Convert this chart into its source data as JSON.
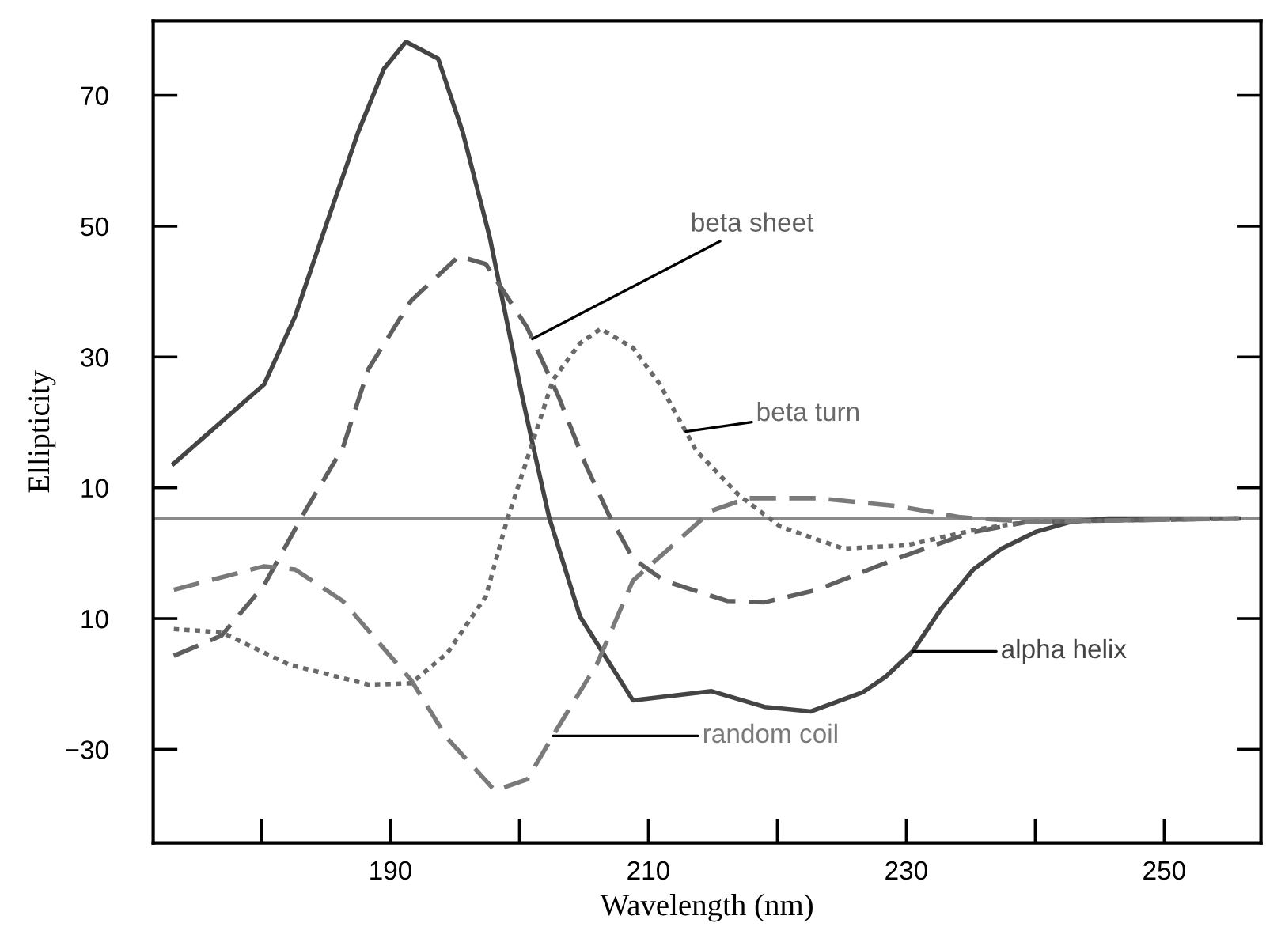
{
  "chart_data": {
    "type": "line",
    "xlabel": "Wavelength (nm)",
    "ylabel": "Ellipticity",
    "xlim": [
      171.6,
      257.5
    ],
    "ylim": [
      -44.3,
      81.4
    ],
    "xticks": [
      {
        "value": 180,
        "label": null
      },
      190,
      {
        "value": 200,
        "label": null
      },
      210,
      {
        "value": 220,
        "label": null
      },
      230,
      {
        "value": 240,
        "label": null
      },
      250
    ],
    "yticks": [
      70,
      50,
      30,
      10,
      {
        "value": -10,
        "label": "10"
      },
      {
        "value": -30,
        "label": "−30"
      }
    ],
    "grid": false,
    "legend": false,
    "marker": "none",
    "ref_lines": [
      {
        "axis": "y",
        "value": 5.3,
        "color": "#8a8a8a"
      }
    ],
    "series": [
      {
        "name": "alpha helix",
        "color": "#444444",
        "line_style": "solid",
        "x": [
          173.2,
          180.2,
          182.6,
          185.1,
          187.5,
          189.5,
          191.2,
          193.7,
          195.6,
          197.7,
          200.2,
          201.0,
          202.3,
          204.7,
          208.8,
          214.9,
          219.0,
          222.6,
          226.6,
          228.4,
          230.5,
          232.7,
          235.2,
          237.4,
          240.1,
          242.8,
          245.6,
          255.8
        ],
        "values": [
          13.7,
          25.8,
          36.2,
          50.7,
          64.4,
          74.1,
          78.2,
          75.6,
          64.4,
          48.3,
          24.1,
          16.9,
          5.5,
          -9.7,
          -22.5,
          -21.1,
          -23.5,
          -24.2,
          -21.3,
          -18.9,
          -15.0,
          -8.5,
          -2.5,
          0.7,
          3.3,
          4.8,
          5.3,
          5.3
        ]
      },
      {
        "name": "beta sheet",
        "color": "#5f5f5f",
        "line_style": "dashed",
        "x": [
          173.2,
          176.9,
          180.2,
          183.4,
          186.3,
          188.3,
          191.6,
          195.3,
          197.4,
          200.6,
          203.0,
          205.1,
          206.9,
          208.8,
          211.2,
          216.1,
          219.0,
          223.1,
          229.3,
          234.9,
          239.4,
          255.8
        ],
        "values": [
          -15.7,
          -12.6,
          -4.9,
          6.5,
          16.1,
          28.2,
          38.6,
          45.4,
          44.2,
          34.5,
          24.1,
          13.7,
          6.0,
          -0.8,
          -4.2,
          -7.3,
          -7.5,
          -5.6,
          -0.8,
          3.1,
          4.8,
          5.3
        ]
      },
      {
        "name": "beta turn",
        "color": "#6a6a6a",
        "line_style": "dotted",
        "x": [
          173.2,
          176.9,
          182.1,
          188.3,
          191.6,
          194.4,
          197.4,
          199.0,
          200.6,
          202.6,
          204.7,
          206.3,
          208.8,
          210.9,
          213.7,
          217.0,
          220.2,
          225.1,
          230.0,
          235.4,
          239.4,
          255.8
        ],
        "values": [
          -11.6,
          -12.1,
          -17.0,
          -20.1,
          -19.9,
          -15.3,
          -6.6,
          4.8,
          14.4,
          26.5,
          32.1,
          34.3,
          31.4,
          25.8,
          15.7,
          8.9,
          4.1,
          0.7,
          1.2,
          3.6,
          4.8,
          5.3
        ]
      },
      {
        "name": "random coil",
        "color": "#7a7a7a",
        "line_style": "dashed",
        "x": [
          173.2,
          180.2,
          182.6,
          186.3,
          191.6,
          194.4,
          198.1,
          200.6,
          203.0,
          206.0,
          208.8,
          211.6,
          214.9,
          217.7,
          223.1,
          229.3,
          234.2,
          239.4,
          255.8
        ],
        "values": [
          -5.6,
          -2.0,
          -2.5,
          -7.3,
          -19.4,
          -28.3,
          -36.3,
          -34.6,
          -26.6,
          -17.0,
          -4.2,
          0.7,
          6.5,
          8.4,
          8.4,
          7.2,
          5.5,
          4.8,
          5.3
        ]
      }
    ]
  }
}
